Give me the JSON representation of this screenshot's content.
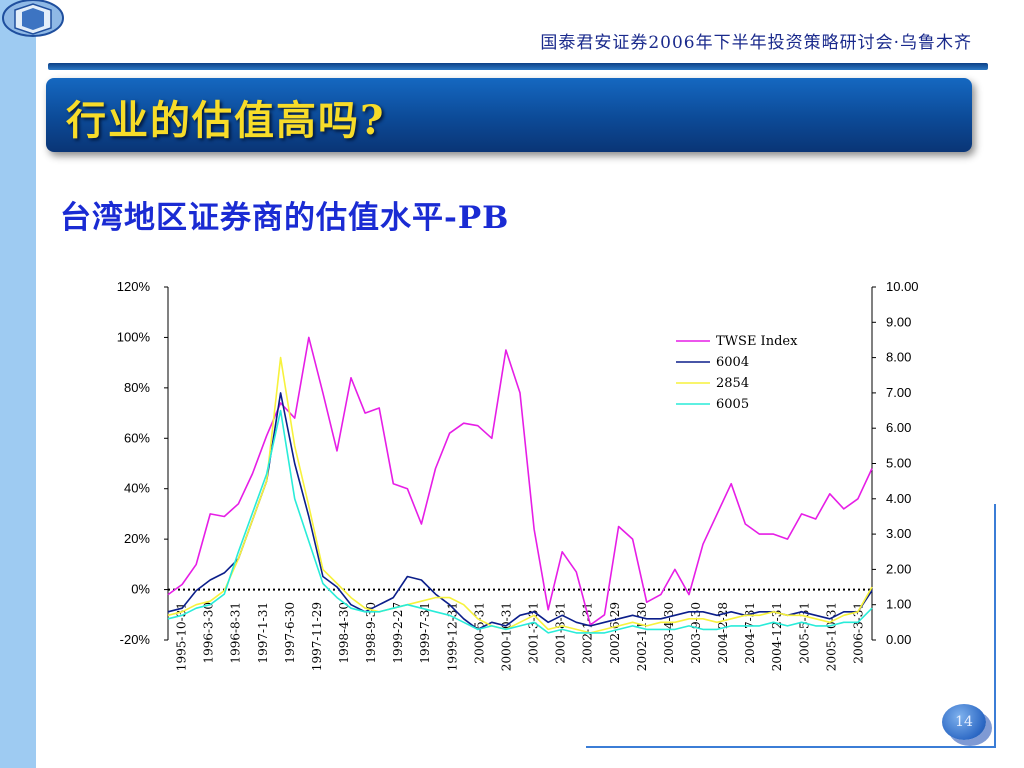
{
  "header": {
    "event": "国泰君安证券2006年下半年投资策略研讨会·乌鲁木齐"
  },
  "title": "行业的估值高吗?",
  "subtitle": "台湾地区证券商的估值水平-PB",
  "page_number": "14",
  "chart_data": {
    "type": "line",
    "x_labels": [
      "1995-10-31",
      "1996-3-30",
      "1996-8-31",
      "1997-1-31",
      "1997-6-30",
      "1997-11-29",
      "1998-4-30",
      "1998-9-30",
      "1999-2-27",
      "1999-7-31",
      "1999-12-31",
      "2000-5-31",
      "2000-10-31",
      "2001-3-31",
      "2001-8-31",
      "2002-1-31",
      "2002-6-29",
      "2002-11-30",
      "2003-4-30",
      "2003-9-30",
      "2004-2-28",
      "2004-7-31",
      "2004-12-31",
      "2005-5-31",
      "2005-10-31",
      "2006-3-31"
    ],
    "y_left": {
      "ticks": [
        "120%",
        "100%",
        "80%",
        "60%",
        "40%",
        "20%",
        "0%",
        "-20%"
      ],
      "range": [
        -20,
        120
      ]
    },
    "y_right": {
      "ticks": [
        "10.00",
        "9.00",
        "8.00",
        "7.00",
        "6.00",
        "5.00",
        "4.00",
        "3.00",
        "2.00",
        "1.00",
        "0.00"
      ],
      "range": [
        0,
        10
      ]
    },
    "legend_position": "top-right",
    "series": [
      {
        "name": "TWSE  Index",
        "color": "#e61ee6",
        "axis": "left",
        "values": [
          -2,
          2,
          10,
          30,
          29,
          34,
          46,
          61,
          74,
          68,
          100,
          78,
          55,
          84,
          70,
          72,
          42,
          40,
          26,
          48,
          62,
          66,
          65,
          60,
          95,
          78,
          24,
          -8,
          15,
          7,
          -14,
          -10,
          25,
          20,
          -5,
          -2,
          8,
          -2,
          18,
          30,
          42,
          26,
          22,
          22,
          20,
          30,
          28,
          38,
          32,
          36,
          48
        ]
      },
      {
        "name": "6004",
        "color": "#0b1e8a",
        "axis": "right",
        "values": [
          0.8,
          0.9,
          1.4,
          1.7,
          1.9,
          2.3,
          3.4,
          4.5,
          7.0,
          5.0,
          3.5,
          1.8,
          1.5,
          1.0,
          0.8,
          1.0,
          1.2,
          1.8,
          1.7,
          1.3,
          1.0,
          0.6,
          0.3,
          0.5,
          0.4,
          0.7,
          0.8,
          0.5,
          0.7,
          0.5,
          0.4,
          0.5,
          0.6,
          0.7,
          0.6,
          0.6,
          0.7,
          0.8,
          0.8,
          0.7,
          0.8,
          0.7,
          0.8,
          0.8,
          0.7,
          0.8,
          0.7,
          0.6,
          0.8,
          0.8,
          1.4
        ]
      },
      {
        "name": "2854",
        "color": "#f7f23c",
        "axis": "right",
        "values": [
          0.7,
          0.8,
          1.0,
          1.1,
          1.4,
          2.3,
          3.4,
          4.5,
          8.0,
          5.5,
          3.8,
          2.0,
          1.6,
          1.2,
          0.9,
          0.8,
          0.9,
          1.0,
          1.1,
          1.2,
          1.2,
          1.0,
          0.6,
          0.4,
          0.3,
          0.5,
          0.7,
          0.3,
          0.4,
          0.3,
          0.2,
          0.3,
          0.4,
          0.5,
          0.4,
          0.5,
          0.5,
          0.6,
          0.6,
          0.5,
          0.6,
          0.7,
          0.7,
          0.8,
          0.7,
          0.7,
          0.6,
          0.5,
          0.7,
          0.8,
          1.5
        ]
      },
      {
        "name": "6005",
        "color": "#29ecd9",
        "axis": "right",
        "values": [
          0.6,
          0.7,
          0.9,
          1.0,
          1.3,
          2.5,
          3.6,
          4.7,
          6.5,
          4.0,
          2.8,
          1.6,
          1.2,
          0.9,
          0.8,
          0.8,
          0.9,
          1.0,
          0.9,
          0.8,
          0.7,
          0.5,
          0.3,
          0.4,
          0.3,
          0.4,
          0.5,
          0.2,
          0.3,
          0.2,
          0.2,
          0.2,
          0.3,
          0.4,
          0.3,
          0.3,
          0.3,
          0.4,
          0.3,
          0.3,
          0.4,
          0.4,
          0.4,
          0.5,
          0.4,
          0.5,
          0.4,
          0.4,
          0.5,
          0.5,
          0.9
        ]
      }
    ]
  }
}
